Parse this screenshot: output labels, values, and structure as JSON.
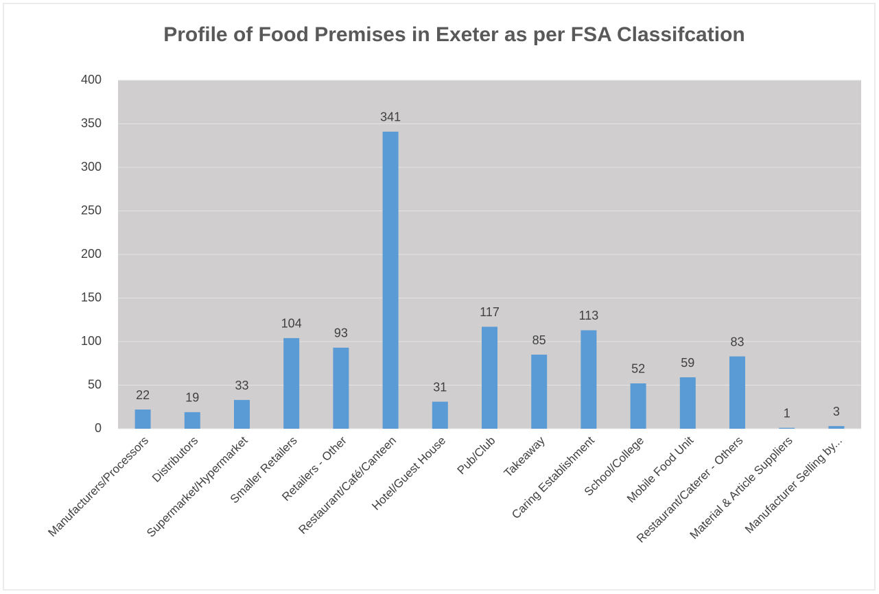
{
  "chart_data": {
    "type": "bar",
    "title": "Profile of Food Premises in Exeter as per FSA Classifcation",
    "categories": [
      "Manufacturers/Processors",
      "Distributors",
      "Supermarket/Hypermarket",
      "Smaller Retailers",
      "Retailers - Other",
      "Restaurant/Café/Canteen",
      "Hotel/Guest House",
      "Pub/Club",
      "Takeaway",
      "Caring Establishment",
      "School/College",
      "Mobile Food Unit",
      "Restaurant/Caterer - Others",
      "Material & Article Suppliers",
      "Manufacturer Selling by..."
    ],
    "values": [
      22,
      19,
      33,
      104,
      93,
      341,
      31,
      117,
      85,
      113,
      52,
      59,
      83,
      1,
      3
    ],
    "color": "#5b9bd5",
    "ylim": [
      0,
      400
    ],
    "yticks": [
      0,
      50,
      100,
      150,
      200,
      250,
      300,
      350,
      400
    ],
    "grid": true
  }
}
